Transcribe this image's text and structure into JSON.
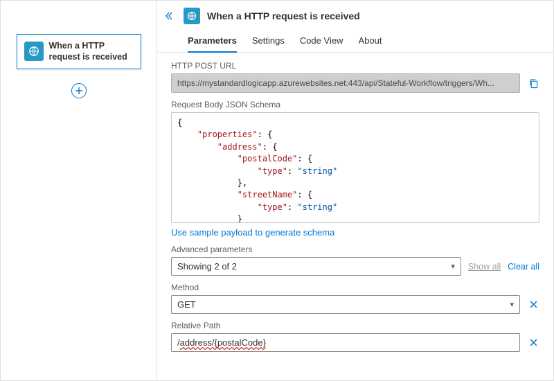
{
  "colors": {
    "accent": "#0078d4",
    "trigger_icon_bg": "#2899c5",
    "border": "#e1dfdd",
    "input_border": "#8a8886",
    "muted_text": "#605e5c",
    "disabled_bg": "#cfcfcf",
    "error": "#d13438",
    "json_key": "#a31515",
    "json_string": "#0451a5"
  },
  "left": {
    "trigger_card_label": "When a HTTP request is received",
    "add_button_title": "Add step"
  },
  "header": {
    "collapse_tooltip": "Collapse",
    "title": "When a HTTP request is received"
  },
  "tabs": [
    {
      "label": "Parameters",
      "active": true
    },
    {
      "label": "Settings",
      "active": false
    },
    {
      "label": "Code View",
      "active": false
    },
    {
      "label": "About",
      "active": false
    }
  ],
  "post_url": {
    "label": "HTTP POST URL",
    "value": "https://mystandardlogicapp.azurewebsites.net:443/api/Stateful-Workflow/triggers/Wh...",
    "copy_tooltip": "Copy URL"
  },
  "schema": {
    "label": "Request Body JSON Schema",
    "lines": [
      [
        {
          "t": "brace",
          "v": "{"
        }
      ],
      [
        {
          "t": "indent",
          "v": "    "
        },
        {
          "t": "key",
          "v": "\"properties\""
        },
        {
          "t": "punct",
          "v": ": "
        },
        {
          "t": "brace",
          "v": "{"
        }
      ],
      [
        {
          "t": "indent",
          "v": "        "
        },
        {
          "t": "key",
          "v": "\"address\""
        },
        {
          "t": "punct",
          "v": ": "
        },
        {
          "t": "brace",
          "v": "{"
        }
      ],
      [
        {
          "t": "indent",
          "v": "            "
        },
        {
          "t": "key",
          "v": "\"postalCode\""
        },
        {
          "t": "punct",
          "v": ": "
        },
        {
          "t": "brace",
          "v": "{"
        }
      ],
      [
        {
          "t": "indent",
          "v": "                "
        },
        {
          "t": "key",
          "v": "\"type\""
        },
        {
          "t": "punct",
          "v": ": "
        },
        {
          "t": "str",
          "v": "\"string\""
        }
      ],
      [
        {
          "t": "indent",
          "v": "            "
        },
        {
          "t": "brace",
          "v": "}"
        },
        {
          "t": "punct",
          "v": ","
        }
      ],
      [
        {
          "t": "indent",
          "v": "            "
        },
        {
          "t": "key",
          "v": "\"streetName\""
        },
        {
          "t": "punct",
          "v": ": "
        },
        {
          "t": "brace",
          "v": "{"
        }
      ],
      [
        {
          "t": "indent",
          "v": "                "
        },
        {
          "t": "key",
          "v": "\"type\""
        },
        {
          "t": "punct",
          "v": ": "
        },
        {
          "t": "str",
          "v": "\"string\""
        }
      ],
      [
        {
          "t": "indent",
          "v": "            "
        },
        {
          "t": "brace",
          "v": "}"
        }
      ]
    ],
    "sample_link": "Use sample payload to generate schema"
  },
  "advanced": {
    "label": "Advanced parameters",
    "selected": "Showing 2 of 2",
    "show_all": "Show all",
    "clear_all": "Clear all"
  },
  "method": {
    "label": "Method",
    "value": "GET",
    "remove_tooltip": "Remove"
  },
  "relative_path": {
    "label": "Relative Path",
    "value": "/address/{postalCode}",
    "error_span": "address/{postalCode}",
    "remove_tooltip": "Remove"
  }
}
